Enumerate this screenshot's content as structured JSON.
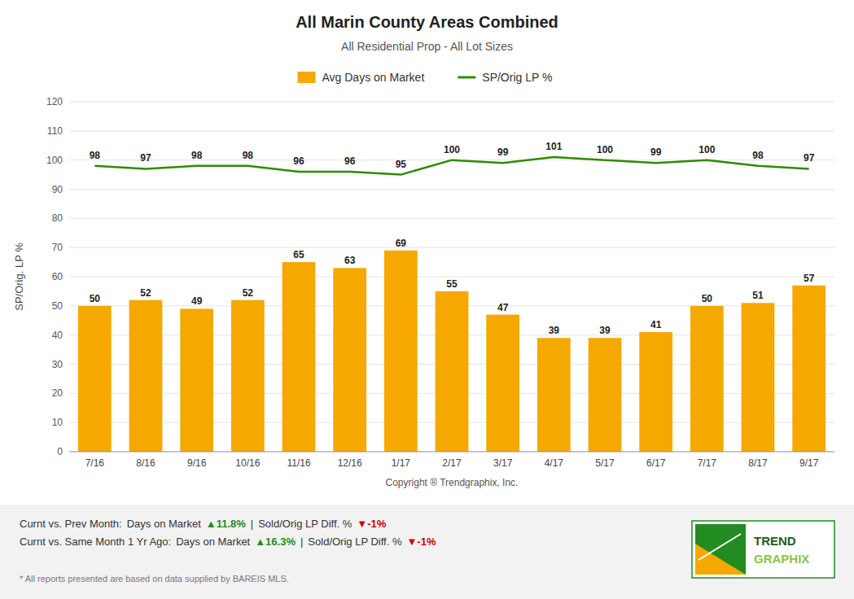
{
  "chart_data": {
    "type": "bar",
    "title": "All Marin County Areas Combined",
    "subtitle": "All Residential Prop - All Lot Sizes",
    "xlabel": "Copyright ® Trendgraphix, Inc.",
    "ylabel": "SP/Orig. LP %",
    "categories": [
      "7/16",
      "8/16",
      "9/16",
      "10/16",
      "11/16",
      "12/16",
      "1/17",
      "2/17",
      "3/17",
      "4/17",
      "5/17",
      "6/17",
      "7/17",
      "8/17",
      "9/17"
    ],
    "series": [
      {
        "name": "Avg Days on Market",
        "type": "bar",
        "color": "#F5A800",
        "values": [
          50,
          52,
          49,
          52,
          65,
          63,
          69,
          55,
          47,
          39,
          39,
          41,
          50,
          51,
          57
        ]
      },
      {
        "name": "SP/Orig LP %",
        "type": "line",
        "color": "#2E8B00",
        "values": [
          98,
          97,
          98,
          98,
          96,
          96,
          95,
          100,
          99,
          101,
          100,
          99,
          100,
          98,
          97
        ]
      }
    ],
    "ylim": [
      0,
      120
    ],
    "yticks": [
      0,
      10,
      20,
      30,
      40,
      50,
      60,
      70,
      80,
      90,
      100,
      110,
      120
    ],
    "grid": true,
    "legend": "top",
    "data_labels": true,
    "annotations": [
      [
        {
          "text": "Curnt vs. Prev Month:"
        },
        {
          "text": "Days on Market"
        },
        {
          "text": "▲11.8%",
          "color": "#228B22"
        },
        {
          "text": "|"
        },
        {
          "text": "Sold/Orig LP Diff. %"
        },
        {
          "text": "▼-1%",
          "color": "#CC0000"
        }
      ],
      [
        {
          "text": "Curnt vs. Same Month 1 Yr Ago:"
        },
        {
          "text": "Days on Market"
        },
        {
          "text": "▲16.3%",
          "color": "#228B22"
        },
        {
          "text": "|"
        },
        {
          "text": "Sold/Orig LP Diff. %"
        },
        {
          "text": "▼-1%",
          "color": "#CC0000"
        }
      ]
    ],
    "footnote": "* All reports presented are based on data supplied by BAREIS MLS.",
    "logo": [
      "TREND",
      "GRAPHIX"
    ]
  }
}
